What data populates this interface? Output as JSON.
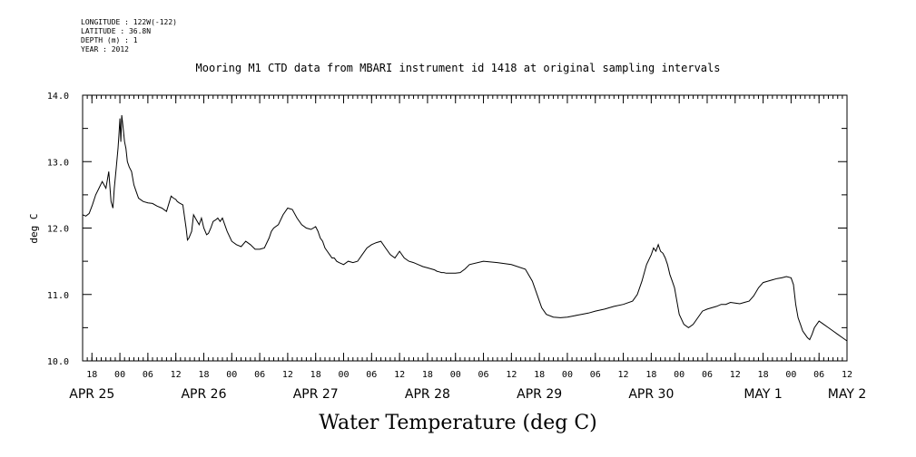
{
  "meta": {
    "lines": [
      "LONGITUDE : 122W(-122)",
      "LATITUDE : 36.8N",
      "DEPTH (m) : 1",
      "YEAR : 2012"
    ]
  },
  "chart_data": {
    "type": "line",
    "title": "Mooring M1 CTD data from MBARI instrument id 1418 at original sampling intervals",
    "xlabel": "Water Temperature (deg C)",
    "ylabel": "deg C",
    "ylim": [
      10.0,
      14.0
    ],
    "yticks": [
      "10.0",
      "11.0",
      "12.0",
      "13.0",
      "14.0"
    ],
    "x_unit": "hours since APR 25 00:00",
    "xlim": [
      -8,
      156
    ],
    "hour_ticks": [
      {
        "h": -6,
        "label": "18"
      },
      {
        "h": 0,
        "label": "00"
      },
      {
        "h": 6,
        "label": "06"
      },
      {
        "h": 12,
        "label": "12"
      },
      {
        "h": 18,
        "label": "18"
      },
      {
        "h": 24,
        "label": "00"
      },
      {
        "h": 30,
        "label": "06"
      },
      {
        "h": 36,
        "label": "12"
      },
      {
        "h": 42,
        "label": "18"
      },
      {
        "h": 48,
        "label": "00"
      },
      {
        "h": 54,
        "label": "06"
      },
      {
        "h": 60,
        "label": "12"
      },
      {
        "h": 66,
        "label": "18"
      },
      {
        "h": 72,
        "label": "00"
      },
      {
        "h": 78,
        "label": "06"
      },
      {
        "h": 84,
        "label": "12"
      },
      {
        "h": 90,
        "label": "18"
      },
      {
        "h": 96,
        "label": "00"
      },
      {
        "h": 102,
        "label": "06"
      },
      {
        "h": 108,
        "label": "12"
      },
      {
        "h": 114,
        "label": "18"
      },
      {
        "h": 120,
        "label": "00"
      },
      {
        "h": 126,
        "label": "06"
      },
      {
        "h": 132,
        "label": "12"
      },
      {
        "h": 138,
        "label": "18"
      },
      {
        "h": 144,
        "label": "00"
      },
      {
        "h": 150,
        "label": "06"
      },
      {
        "h": 156,
        "label": "12"
      }
    ],
    "day_labels": [
      {
        "h": -6,
        "label": "APR 25"
      },
      {
        "h": 18,
        "label": "APR 26"
      },
      {
        "h": 42,
        "label": "APR 27"
      },
      {
        "h": 66,
        "label": "APR 28"
      },
      {
        "h": 90,
        "label": "APR 29"
      },
      {
        "h": 114,
        "label": "APR 30"
      },
      {
        "h": 138,
        "label": "MAY  1"
      },
      {
        "h": 156,
        "label": "MAY  2"
      }
    ],
    "series": [
      {
        "color": "#000000",
        "x": [
          -8.0,
          -7.3,
          -6.6,
          -5.9,
          -5.2,
          -4.5,
          -3.8,
          -3.0,
          -2.4,
          -1.9,
          -1.5,
          -1.2,
          -0.8,
          -0.4,
          -0.2,
          0.0,
          0.2,
          0.4,
          0.7,
          1.0,
          1.3,
          1.6,
          2.0,
          2.5,
          3.0,
          3.5,
          4.0,
          5.0,
          6.0,
          7.0,
          8.0,
          9.0,
          10.0,
          11.0,
          11.5,
          12.0,
          12.3,
          12.7,
          13.5,
          14.2,
          14.5,
          14.8,
          15.1,
          15.4,
          15.8,
          16.2,
          16.6,
          17.0,
          17.5,
          18.0,
          18.6,
          19.0,
          19.5,
          20.0,
          20.5,
          21.0,
          21.5,
          22.0,
          23.0,
          24.0,
          25.0,
          26.0,
          27.0,
          28.0,
          29.0,
          30.0,
          31.0,
          32.0,
          32.5,
          33.0,
          34.0,
          35.0,
          36.0,
          37.0,
          38.0,
          39.0,
          40.0,
          41.0,
          42.0,
          42.5,
          43.0,
          43.5,
          44.0,
          44.5,
          45.0,
          45.5,
          46.0,
          46.5,
          47.0,
          48.0,
          49.0,
          50.0,
          51.0,
          52.0,
          53.0,
          54.0,
          55.0,
          56.0,
          57.0,
          58.0,
          59.0,
          60.0,
          61.0,
          62.0,
          63.0,
          64.0,
          65.0,
          66.0,
          67.0,
          67.5,
          68.0,
          68.5,
          69.0,
          69.5,
          70.0,
          71.0,
          72.0,
          73.0,
          74.0,
          75.0,
          78.0,
          81.0,
          84.0,
          87.0,
          88.5,
          89.5,
          90.5,
          91.5,
          93.0,
          94.5,
          96.0,
          97.5,
          99.0,
          100.5,
          102.0,
          104.0,
          106.0,
          108.0,
          110.0,
          111.0,
          112.0,
          113.0,
          114.0,
          114.5,
          115.0,
          115.5,
          116.0,
          116.5,
          117.0,
          117.5,
          118.0,
          118.5,
          119.0,
          119.5,
          120.0,
          121.0,
          122.0,
          123.0,
          124.0,
          125.0,
          126.0,
          127.0,
          128.0,
          129.0,
          130.0,
          131.0,
          132.0,
          133.0,
          134.0,
          135.0,
          136.0,
          137.0,
          138.0,
          139.0,
          140.0,
          141.0,
          142.0,
          143.0,
          144.0,
          144.5,
          145.0,
          145.5,
          146.0,
          146.5,
          147.0,
          147.5,
          148.0,
          148.5,
          149.0,
          150.0,
          151.0,
          152.0,
          153.0,
          154.0,
          155.0,
          156.0
        ],
        "y": [
          12.2,
          12.18,
          12.22,
          12.35,
          12.5,
          12.6,
          12.7,
          12.6,
          12.85,
          12.4,
          12.3,
          12.6,
          12.9,
          13.2,
          13.4,
          13.65,
          13.3,
          13.7,
          13.5,
          13.3,
          13.2,
          13.0,
          12.92,
          12.85,
          12.65,
          12.55,
          12.45,
          12.4,
          12.38,
          12.37,
          12.33,
          12.3,
          12.25,
          12.48,
          12.45,
          12.43,
          12.4,
          12.38,
          12.35,
          12.0,
          11.82,
          11.85,
          11.9,
          11.95,
          12.2,
          12.15,
          12.1,
          12.05,
          12.15,
          12.0,
          11.9,
          11.92,
          12.0,
          12.1,
          12.12,
          12.15,
          12.1,
          12.15,
          11.95,
          11.8,
          11.75,
          11.72,
          11.8,
          11.75,
          11.68,
          11.68,
          11.7,
          11.85,
          11.95,
          12.0,
          12.05,
          12.2,
          12.3,
          12.28,
          12.15,
          12.05,
          12.0,
          11.98,
          12.02,
          11.95,
          11.85,
          11.8,
          11.7,
          11.65,
          11.6,
          11.55,
          11.55,
          11.5,
          11.48,
          11.45,
          11.5,
          11.48,
          11.5,
          11.6,
          11.7,
          11.75,
          11.78,
          11.8,
          11.7,
          11.6,
          11.55,
          11.65,
          11.55,
          11.5,
          11.48,
          11.45,
          11.42,
          11.4,
          11.38,
          11.37,
          11.35,
          11.34,
          11.33,
          11.33,
          11.32,
          11.32,
          11.32,
          11.33,
          11.38,
          11.45,
          11.5,
          11.48,
          11.45,
          11.38,
          11.2,
          11.0,
          10.8,
          10.7,
          10.66,
          10.65,
          10.66,
          10.68,
          10.7,
          10.72,
          10.75,
          10.78,
          10.82,
          10.85,
          10.9,
          11.0,
          11.2,
          11.45,
          11.6,
          11.7,
          11.65,
          11.75,
          11.65,
          11.62,
          11.55,
          11.45,
          11.3,
          11.2,
          11.1,
          10.9,
          10.7,
          10.55,
          10.5,
          10.55,
          10.65,
          10.75,
          10.78,
          10.8,
          10.82,
          10.85,
          10.85,
          10.88,
          10.87,
          10.86,
          10.88,
          10.9,
          10.98,
          11.1,
          11.18,
          11.2,
          11.22,
          11.24,
          11.25,
          11.27,
          11.25,
          11.15,
          10.85,
          10.65,
          10.55,
          10.45,
          10.4,
          10.35,
          10.32,
          10.4,
          10.5,
          10.6,
          10.55,
          10.5,
          10.45,
          10.4,
          10.35,
          10.3
        ]
      }
    ]
  }
}
